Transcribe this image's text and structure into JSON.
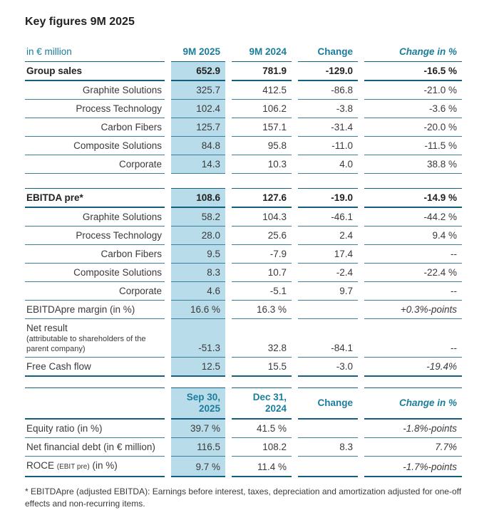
{
  "title": "Key figures 9M 2025",
  "colors": {
    "accent_teal": "#1b7d9b",
    "band_blue": "#b9dcea",
    "line_teal": "#135f7e",
    "body_text": "#3a3a3a"
  },
  "main_table": {
    "headers": [
      "in € million",
      "9M 2025",
      "9M 2024",
      "Change",
      "Change in %"
    ],
    "rows": [
      {
        "label": "Group sales",
        "bold": true,
        "strong": true,
        "values": [
          "652.9",
          "781.9",
          "-129.0",
          "-16.5 %"
        ]
      },
      {
        "label": "Graphite Solutions",
        "sub": true,
        "values": [
          "325.7",
          "412.5",
          "-86.8",
          "-21.0 %"
        ]
      },
      {
        "label": "Process Technology",
        "sub": true,
        "values": [
          "102.4",
          "106.2",
          "-3.8",
          "-3.6 %"
        ]
      },
      {
        "label": "Carbon Fibers",
        "sub": true,
        "values": [
          "125.7",
          "157.1",
          "-31.4",
          "-20.0 %"
        ]
      },
      {
        "label": "Composite Solutions",
        "sub": true,
        "values": [
          "84.8",
          "95.8",
          "-11.0",
          "-11.5 %"
        ]
      },
      {
        "label": "Corporate",
        "sub": true,
        "values": [
          "14.3",
          "10.3",
          "4.0",
          "38.8 %"
        ]
      },
      {
        "gap": true
      },
      {
        "label": "EBITDA pre*",
        "bold": true,
        "strong": true,
        "topline": true,
        "values": [
          "108.6",
          "127.6",
          "-19.0",
          "-14.9 %"
        ]
      },
      {
        "label": "Graphite Solutions",
        "sub": true,
        "values": [
          "58.2",
          "104.3",
          "-46.1",
          "-44.2 %"
        ]
      },
      {
        "label": "Process Technology",
        "sub": true,
        "values": [
          "28.0",
          "25.6",
          "2.4",
          "9.4 %"
        ]
      },
      {
        "label": "Carbon Fibers",
        "sub": true,
        "values": [
          "9.5",
          "-7.9",
          "17.4",
          "--"
        ]
      },
      {
        "label": "Composite Solutions",
        "sub": true,
        "values": [
          "8.3",
          "10.7",
          "-2.4",
          "-22.4 %"
        ]
      },
      {
        "label": "Corporate",
        "sub": true,
        "values": [
          "4.6",
          "-5.1",
          "9.7",
          "--"
        ]
      },
      {
        "label": "EBITDApre margin (in %)",
        "pct_italic": true,
        "values": [
          "16.6 %",
          "16.3 %",
          "",
          "+0.3%-points"
        ]
      },
      {
        "label_lines": [
          "Net result",
          "(attributable to shareholders of the",
          "parent company)"
        ],
        "values": [
          "-51.3",
          "32.8",
          "-84.1",
          "--"
        ]
      },
      {
        "label": "Free Cash flow",
        "strong": true,
        "pct_italic": true,
        "values": [
          "12.5",
          "15.5",
          "-3.0",
          "-19.4%"
        ]
      }
    ]
  },
  "secondary_table": {
    "headers": [
      "",
      "Sep 30,\n2025",
      "Dec 31,\n2024",
      "Change",
      "Change in %"
    ],
    "rows": [
      {
        "label": "Equity ratio (in %)",
        "pct_italic": true,
        "values": [
          "39.7 %",
          "41.5 %",
          "",
          "-1.8%-points"
        ]
      },
      {
        "label": "Net financial debt (in € million)",
        "pct_italic": true,
        "values": [
          "116.5",
          "108.2",
          "8.3",
          "7.7%"
        ]
      },
      {
        "label_parts": [
          {
            "text": "ROCE "
          },
          {
            "text": "(EBIT pre)",
            "small": true
          },
          {
            "text": " (in %)"
          }
        ],
        "strong": true,
        "pct_italic": true,
        "values": [
          "9.7 %",
          "11.4 %",
          "",
          "-1.7%-points"
        ]
      }
    ]
  },
  "footnote": {
    "text": "* EBITDApre (adjusted EBITDA): Earnings before interest, taxes, depreciation and amortization adjusted for one-off effects and non-recurring items."
  }
}
